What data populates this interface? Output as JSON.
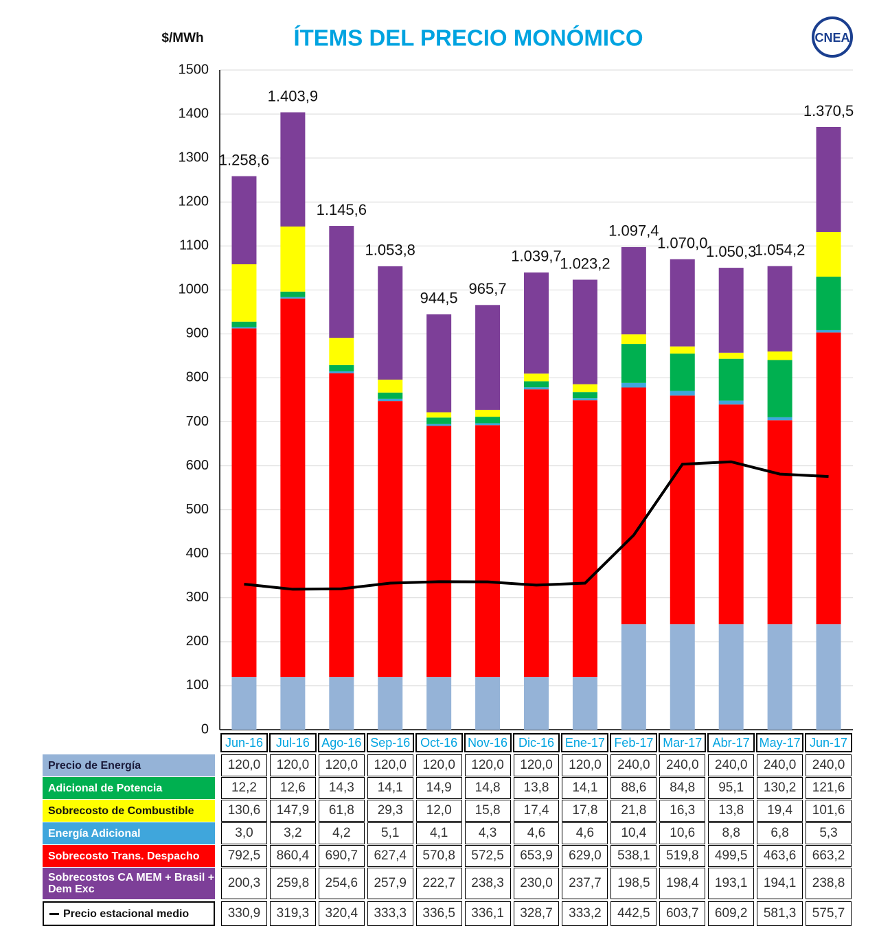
{
  "chart_data": {
    "type": "bar",
    "stacked": true,
    "title": "ÍTEMS DEL PRECIO MONÓMICO",
    "y_label": "$/MWh",
    "logo": "CNEA",
    "categories": [
      "Jun-16",
      "Jul-16",
      "Ago-16",
      "Sep-16",
      "Oct-16",
      "Nov-16",
      "Dic-16",
      "Ene-17",
      "Feb-17",
      "Mar-17",
      "Abr-17",
      "May-17",
      "Jun-17"
    ],
    "ylim": [
      0,
      1500
    ],
    "yticks": [
      0,
      100,
      200,
      300,
      400,
      500,
      600,
      700,
      800,
      900,
      1000,
      1100,
      1200,
      1300,
      1400,
      1500
    ],
    "grid": true,
    "series": [
      {
        "name": "Precio de Energía",
        "color": "#95b3d7",
        "values": [
          120.0,
          120.0,
          120.0,
          120.0,
          120.0,
          120.0,
          120.0,
          120.0,
          240.0,
          240.0,
          240.0,
          240.0,
          240.0
        ],
        "value_labels": [
          "120,0",
          "120,0",
          "120,0",
          "120,0",
          "120,0",
          "120,0",
          "120,0",
          "120,0",
          "240,0",
          "240,0",
          "240,0",
          "240,0",
          "240,0"
        ]
      },
      {
        "name": "Adicional de Potencia",
        "color": "#00b050",
        "values": [
          12.2,
          12.6,
          14.3,
          14.1,
          14.9,
          14.8,
          13.8,
          14.1,
          88.6,
          84.8,
          95.1,
          130.2,
          121.6
        ],
        "value_labels": [
          "12,2",
          "12,6",
          "14,3",
          "14,1",
          "14,9",
          "14,8",
          "13,8",
          "14,1",
          "88,6",
          "84,8",
          "95,1",
          "130,2",
          "121,6"
        ]
      },
      {
        "name": "Sobrecosto de Combustible",
        "color": "#ffff00",
        "values": [
          130.6,
          147.9,
          61.8,
          29.3,
          12.0,
          15.8,
          17.4,
          17.8,
          21.8,
          16.3,
          13.8,
          19.4,
          101.6
        ],
        "value_labels": [
          "130,6",
          "147,9",
          "61,8",
          "29,3",
          "12,0",
          "15,8",
          "17,4",
          "17,8",
          "21,8",
          "16,3",
          "13,8",
          "19,4",
          "101,6"
        ]
      },
      {
        "name": "Energía Adicional",
        "color": "#3fa6dc",
        "values": [
          3.0,
          3.2,
          4.2,
          5.1,
          4.1,
          4.3,
          4.6,
          4.6,
          10.4,
          10.6,
          8.8,
          6.8,
          5.3
        ],
        "value_labels": [
          "3,0",
          "3,2",
          "4,2",
          "5,1",
          "4,1",
          "4,3",
          "4,6",
          "4,6",
          "10,4",
          "10,6",
          "8,8",
          "6,8",
          "5,3"
        ]
      },
      {
        "name": "Sobrecosto Trans. Despacho",
        "color": "#ff0000",
        "values": [
          792.5,
          860.4,
          690.7,
          627.4,
          570.8,
          572.5,
          653.9,
          629.0,
          538.1,
          519.8,
          499.5,
          463.6,
          663.2
        ],
        "value_labels": [
          "792,5",
          "860,4",
          "690,7",
          "627,4",
          "570,8",
          "572,5",
          "653,9",
          "629,0",
          "538,1",
          "519,8",
          "499,5",
          "463,6",
          "663,2"
        ]
      },
      {
        "name": "Sobrecostos CA MEM + Brasil + Dem Exc",
        "color": "#7d3f98",
        "values": [
          200.3,
          259.8,
          254.6,
          257.9,
          222.7,
          238.3,
          230.0,
          237.7,
          198.5,
          198.4,
          193.1,
          194.1,
          238.8
        ],
        "value_labels": [
          "200,3",
          "259,8",
          "254,6",
          "257,9",
          "222,7",
          "238,3",
          "230,0",
          "237,7",
          "198,5",
          "198,4",
          "193,1",
          "194,1",
          "238,8"
        ]
      },
      {
        "name": "Precio estacional medio",
        "type": "line",
        "color": "#000000",
        "values": [
          330.9,
          319.3,
          320.4,
          333.3,
          336.5,
          336.1,
          328.7,
          333.2,
          442.5,
          603.7,
          609.2,
          581.3,
          575.7
        ],
        "value_labels": [
          "330,9",
          "319,3",
          "320,4",
          "333,3",
          "336,5",
          "336,1",
          "328,7",
          "333,2",
          "442,5",
          "603,7",
          "609,2",
          "581,3",
          "575,7"
        ]
      }
    ],
    "totals": {
      "values": [
        1258.6,
        1403.9,
        1145.6,
        1053.8,
        944.5,
        965.7,
        1039.7,
        1023.2,
        1097.4,
        1070.0,
        1050.3,
        1054.2,
        1370.5
      ],
      "value_labels": [
        "1.258,6",
        "1.403,9",
        "1.145,6",
        "1.053,8",
        "944,5",
        "965,7",
        "1.039,7",
        "1.023,2",
        "1.097,4",
        "1.070,0",
        "1.050,3",
        "1.054,2",
        "1.370,5"
      ]
    }
  }
}
